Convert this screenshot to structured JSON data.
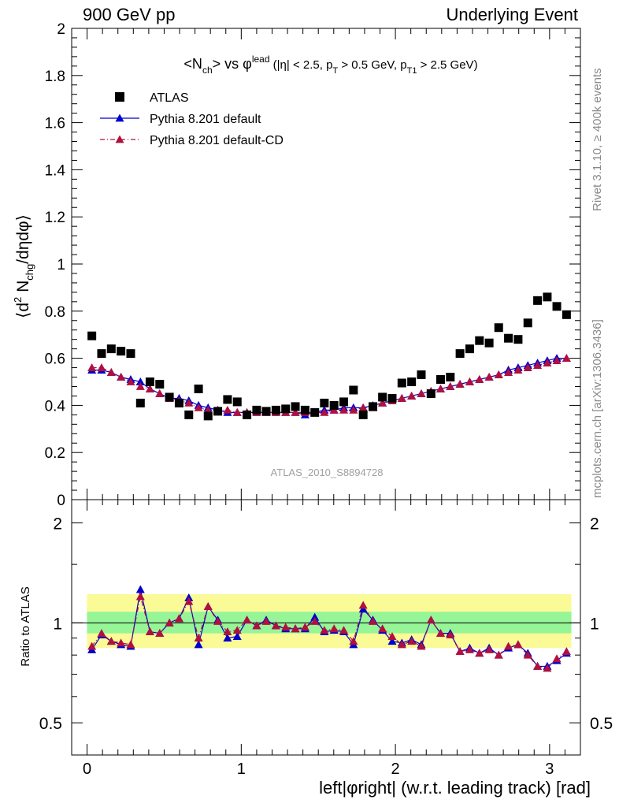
{
  "header": {
    "left": "900 GeV pp",
    "right": "Underlying Event"
  },
  "side_labels": {
    "rivet": "Rivet 3.1.10, ≥ 400k events",
    "mcplots": "mcplots.cern.ch [arXiv:1306.3436]"
  },
  "plot": {
    "title_parts": [
      "<N",
      "ch",
      "> vs φ",
      "lead",
      " (|η| < 2.5, p",
      "T",
      " > 0.5 GeV, p",
      "T1",
      " > 2.5 GeV)"
    ],
    "ylabel_parts": [
      "⟨d",
      "2",
      " N",
      "chg",
      "/dηdφ⟩"
    ],
    "watermark": "ATLAS_2010_S8894728",
    "xlabel": "left|φright| (w.r.t. leading track) [rad]",
    "ratio_ylabel": "Ratio to ATLAS"
  },
  "legend": [
    "ATLAS",
    "Pythia 8.201 default",
    "Pythia 8.201 default-CD"
  ],
  "colors": {
    "data": "#000000",
    "default": "#0000cc",
    "cd": "#b0103e",
    "band_inner": "#96f596",
    "band_outer": "#fafa96"
  },
  "chart_data": [
    {
      "type": "scatter",
      "xlim": [
        -0.1,
        3.2
      ],
      "ylim": [
        0,
        2
      ],
      "yticks": [
        0,
        0.2,
        0.4,
        0.6,
        0.8,
        1,
        1.2,
        1.4,
        1.6,
        1.8,
        2
      ],
      "ytick_labels": [
        "0",
        "0.2",
        "0.4",
        "0.6",
        "0.8",
        "1",
        "1.2",
        "1.4",
        "1.6",
        "1.8",
        "2"
      ],
      "x": [
        0.031,
        0.094,
        0.157,
        0.22,
        0.283,
        0.346,
        0.408,
        0.471,
        0.534,
        0.597,
        0.66,
        0.723,
        0.785,
        0.848,
        0.911,
        0.974,
        1.037,
        1.1,
        1.162,
        1.225,
        1.288,
        1.351,
        1.414,
        1.477,
        1.539,
        1.602,
        1.665,
        1.728,
        1.791,
        1.854,
        1.916,
        1.979,
        2.042,
        2.105,
        2.168,
        2.231,
        2.293,
        2.356,
        2.419,
        2.482,
        2.545,
        2.608,
        2.67,
        2.733,
        2.796,
        2.859,
        2.922,
        2.985,
        3.047,
        3.11
      ],
      "series": [
        {
          "name": "ATLAS",
          "values": [
            0.695,
            0.62,
            0.64,
            0.63,
            0.62,
            0.41,
            0.5,
            0.49,
            0.435,
            0.41,
            0.36,
            0.47,
            0.355,
            0.375,
            0.425,
            0.415,
            0.36,
            0.38,
            0.375,
            0.38,
            0.385,
            0.395,
            0.38,
            0.37,
            0.41,
            0.4,
            0.415,
            0.465,
            0.36,
            0.395,
            0.435,
            0.43,
            0.495,
            0.5,
            0.53,
            0.45,
            0.51,
            0.52,
            0.62,
            0.64,
            0.675,
            0.665,
            0.73,
            0.685,
            0.68,
            0.75,
            0.845,
            0.86,
            0.82,
            0.785
          ]
        },
        {
          "name": "Pythia 8.201 default",
          "values": [
            0.55,
            0.55,
            0.54,
            0.52,
            0.51,
            0.5,
            0.47,
            0.45,
            0.43,
            0.43,
            0.42,
            0.4,
            0.39,
            0.38,
            0.37,
            0.37,
            0.37,
            0.37,
            0.37,
            0.37,
            0.37,
            0.37,
            0.36,
            0.37,
            0.38,
            0.38,
            0.39,
            0.39,
            0.39,
            0.4,
            0.41,
            0.42,
            0.43,
            0.44,
            0.45,
            0.46,
            0.47,
            0.48,
            0.49,
            0.5,
            0.51,
            0.52,
            0.53,
            0.55,
            0.56,
            0.57,
            0.58,
            0.59,
            0.6,
            0.6
          ]
        },
        {
          "name": "Pythia 8.201 default-CD",
          "values": [
            0.56,
            0.56,
            0.54,
            0.52,
            0.5,
            0.48,
            0.47,
            0.45,
            0.43,
            0.42,
            0.41,
            0.39,
            0.38,
            0.38,
            0.38,
            0.37,
            0.37,
            0.37,
            0.37,
            0.37,
            0.37,
            0.37,
            0.37,
            0.37,
            0.37,
            0.38,
            0.38,
            0.38,
            0.39,
            0.39,
            0.41,
            0.42,
            0.43,
            0.44,
            0.45,
            0.46,
            0.47,
            0.48,
            0.49,
            0.5,
            0.51,
            0.52,
            0.53,
            0.54,
            0.55,
            0.56,
            0.57,
            0.58,
            0.59,
            0.6
          ]
        }
      ]
    },
    {
      "type": "line",
      "xlim": [
        -0.1,
        3.2
      ],
      "ylim": [
        0.4,
        2.35
      ],
      "yscale": "log",
      "yticks": [
        0.5,
        1,
        2
      ],
      "ytick_labels": [
        "0.5",
        "1",
        "2"
      ],
      "xticks": [
        0,
        1,
        2,
        3
      ],
      "xtick_labels": [
        "0",
        "1",
        "2",
        "3"
      ],
      "band_inner": [
        0.93,
        1.08
      ],
      "band_outer": [
        0.84,
        1.22
      ],
      "series": [
        {
          "name": "Pythia 8.201 default",
          "values": [
            0.83,
            0.92,
            0.88,
            0.86,
            0.85,
            1.26,
            0.94,
            0.93,
            1.0,
            1.03,
            1.19,
            0.86,
            1.12,
            1.02,
            0.9,
            0.91,
            1.02,
            0.98,
            1.02,
            0.98,
            0.96,
            0.96,
            0.96,
            1.04,
            0.94,
            0.95,
            0.94,
            0.86,
            1.1,
            1.02,
            0.95,
            0.88,
            0.87,
            0.89,
            0.86,
            1.02,
            0.93,
            0.93,
            0.82,
            0.84,
            0.81,
            0.84,
            0.8,
            0.84,
            0.86,
            0.81,
            0.74,
            0.74,
            0.77,
            0.81
          ]
        },
        {
          "name": "Pythia 8.201 default-CD",
          "values": [
            0.85,
            0.93,
            0.88,
            0.87,
            0.86,
            1.2,
            0.94,
            0.93,
            1.0,
            1.03,
            1.16,
            0.9,
            1.12,
            1.01,
            0.94,
            0.95,
            1.02,
            0.98,
            1.01,
            0.98,
            0.97,
            0.96,
            0.97,
            1.01,
            0.95,
            0.96,
            0.95,
            0.88,
            1.13,
            1.01,
            0.96,
            0.91,
            0.86,
            0.88,
            0.85,
            1.02,
            0.93,
            0.92,
            0.82,
            0.83,
            0.81,
            0.83,
            0.8,
            0.85,
            0.86,
            0.8,
            0.74,
            0.73,
            0.78,
            0.82
          ]
        }
      ]
    }
  ]
}
